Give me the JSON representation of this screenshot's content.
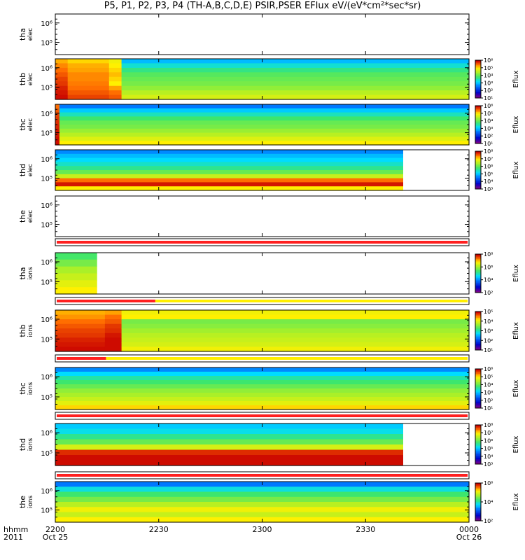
{
  "chart_data": {
    "type": "heatmap",
    "title": "P5, P1, P2, P3, P4 (TH-A,B,C,D,E) PSIR,PSER EFlux eV/(eV*cm²*sec*sr)",
    "x_axis": {
      "row_label_1": "hhmm",
      "row_label_2": "2011",
      "ticks": [
        {
          "label": "2200",
          "sub": "Oct 25",
          "frac": 0.0
        },
        {
          "label": "2230",
          "sub": "",
          "frac": 0.25
        },
        {
          "label": "2300",
          "sub": "",
          "frac": 0.5
        },
        {
          "label": "2330",
          "sub": "",
          "frac": 0.75
        },
        {
          "label": "0000",
          "sub": "Oct 26",
          "frac": 1.0
        }
      ],
      "range": [
        "2200",
        "0000"
      ]
    },
    "colorbar_label": "Eflux",
    "panels": [
      {
        "probe": "tha",
        "species": "elec",
        "yticks": [
          "10⁶",
          "10⁵"
        ],
        "empty": true,
        "cbar": []
      },
      {
        "probe": "thb",
        "species": "elec",
        "yticks": [
          "10⁶",
          "10⁵"
        ],
        "empty": false,
        "cbar": [
          "10⁶",
          "10⁵",
          "10⁴",
          "10³",
          "10²",
          "10¹"
        ]
      },
      {
        "probe": "thc",
        "species": "elec",
        "yticks": [
          "10⁶",
          "10⁵"
        ],
        "empty": false,
        "cbar": [
          "10⁶",
          "10⁵",
          "10⁴",
          "10³",
          "10²",
          "10¹"
        ]
      },
      {
        "probe": "thd",
        "species": "elec",
        "yticks": [
          "10⁶",
          "10⁵"
        ],
        "empty": false,
        "data_end_frac": 0.84,
        "cbar": [
          "10⁸",
          "10⁷",
          "10⁶",
          "10⁵",
          "10⁴",
          "10³"
        ]
      },
      {
        "probe": "the",
        "species": "elec",
        "yticks": [
          "10⁶",
          "10⁵"
        ],
        "empty": true,
        "cbar": []
      },
      {
        "probe": "tha",
        "species": "ions",
        "yticks": [
          "10⁶",
          "10⁵"
        ],
        "empty": false,
        "data_end_frac": 0.1,
        "cbar": [
          "10⁸",
          "10⁶",
          "10⁴",
          "10²"
        ]
      },
      {
        "probe": "thb",
        "species": "ions",
        "yticks": [
          "10⁶",
          "10⁵"
        ],
        "empty": false,
        "cbar": [
          "10⁵",
          "10⁴",
          "10³",
          "10²",
          "10¹"
        ]
      },
      {
        "probe": "thc",
        "species": "ions",
        "yticks": [
          "10⁶",
          "10⁵"
        ],
        "empty": false,
        "cbar": [
          "10⁶",
          "10⁵",
          "10⁴",
          "10³",
          "10²",
          "10¹"
        ]
      },
      {
        "probe": "thd",
        "species": "ions",
        "yticks": [
          "10⁶",
          "10⁵"
        ],
        "empty": false,
        "data_end_frac": 0.84,
        "cbar": [
          "10⁸",
          "10⁷",
          "10⁶",
          "10⁵",
          "10⁴",
          "10³"
        ]
      },
      {
        "probe": "the",
        "species": "ions",
        "yticks": [
          "10⁶",
          "10⁵"
        ],
        "empty": false,
        "cbar": [
          "10⁶",
          "10⁴",
          "10²"
        ]
      }
    ],
    "mode_bars": [
      {
        "after_panel": 4,
        "red_end_frac": 1.0
      },
      {
        "after_panel": 5,
        "red_end_frac": 0.24
      },
      {
        "after_panel": 6,
        "red_end_frac": 0.12
      },
      {
        "after_panel": 7,
        "red_end_frac": 1.0
      },
      {
        "after_panel": 8,
        "red_end_frac": 1.0
      }
    ]
  }
}
